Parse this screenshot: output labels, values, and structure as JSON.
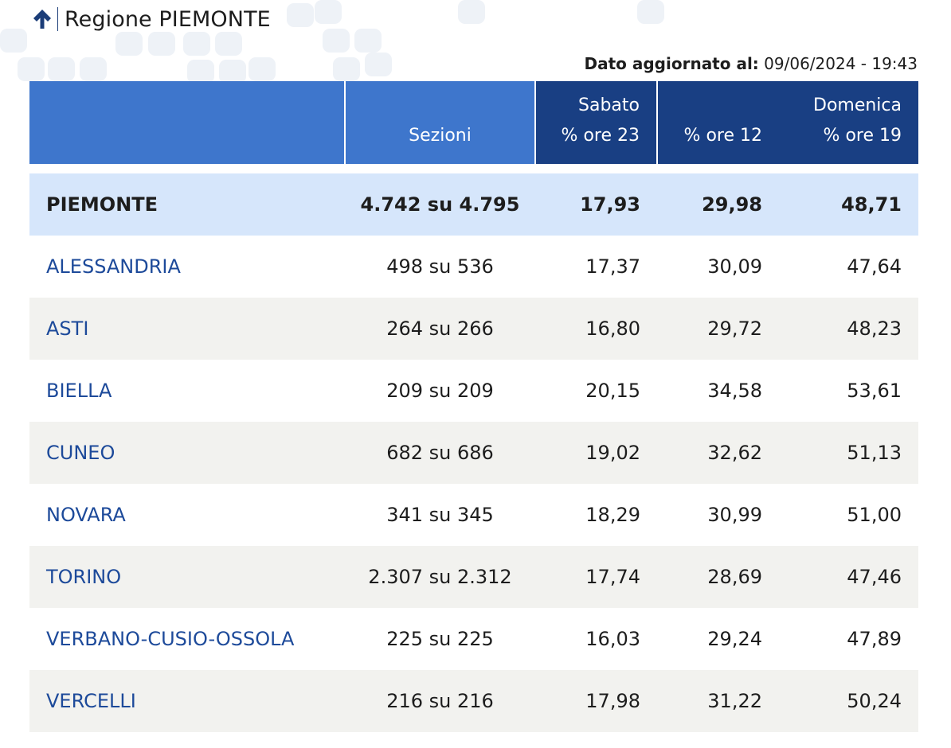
{
  "header": {
    "title": "Regione PIEMONTE",
    "updated_label": "Dato aggiornato al:",
    "updated_value": "09/06/2024 - 19:43"
  },
  "table": {
    "headers": {
      "sezioni": "Sezioni",
      "sabato": "Sabato",
      "sabato_23": "% ore 23",
      "ore_12": "% ore 12",
      "domenica": "Domenica",
      "domenica_19": "% ore 19"
    },
    "total": {
      "name": "PIEMONTE",
      "sezioni": "4.742 su 4.795",
      "sab23": "17,93",
      "dom12": "29,98",
      "dom19": "48,71"
    },
    "rows": [
      {
        "name": "ALESSANDRIA",
        "sezioni": "498 su 536",
        "sab23": "17,37",
        "dom12": "30,09",
        "dom19": "47,64"
      },
      {
        "name": "ASTI",
        "sezioni": "264 su 266",
        "sab23": "16,80",
        "dom12": "29,72",
        "dom19": "48,23"
      },
      {
        "name": "BIELLA",
        "sezioni": "209 su 209",
        "sab23": "20,15",
        "dom12": "34,58",
        "dom19": "53,61"
      },
      {
        "name": "CUNEO",
        "sezioni": "682 su 686",
        "sab23": "19,02",
        "dom12": "32,62",
        "dom19": "51,13"
      },
      {
        "name": "NOVARA",
        "sezioni": "341 su 345",
        "sab23": "18,29",
        "dom12": "30,99",
        "dom19": "51,00"
      },
      {
        "name": "TORINO",
        "sezioni": "2.307 su 2.312",
        "sab23": "17,74",
        "dom12": "28,69",
        "dom19": "47,46"
      },
      {
        "name": "VERBANO-CUSIO-OSSOLA",
        "sezioni": "225 su 225",
        "sab23": "16,03",
        "dom12": "29,24",
        "dom19": "47,89"
      },
      {
        "name": "VERCELLI",
        "sezioni": "216 su 216",
        "sab23": "17,98",
        "dom12": "31,22",
        "dom19": "50,24"
      }
    ]
  },
  "icons": {
    "back": "arrow-up-icon"
  },
  "colors": {
    "header_light_blue": "#3e76cc",
    "header_dark_blue": "#193f83",
    "total_row_bg": "#d6e6fb",
    "alt_row_bg": "#f2f2ef",
    "link_blue": "#1d4a9a"
  }
}
